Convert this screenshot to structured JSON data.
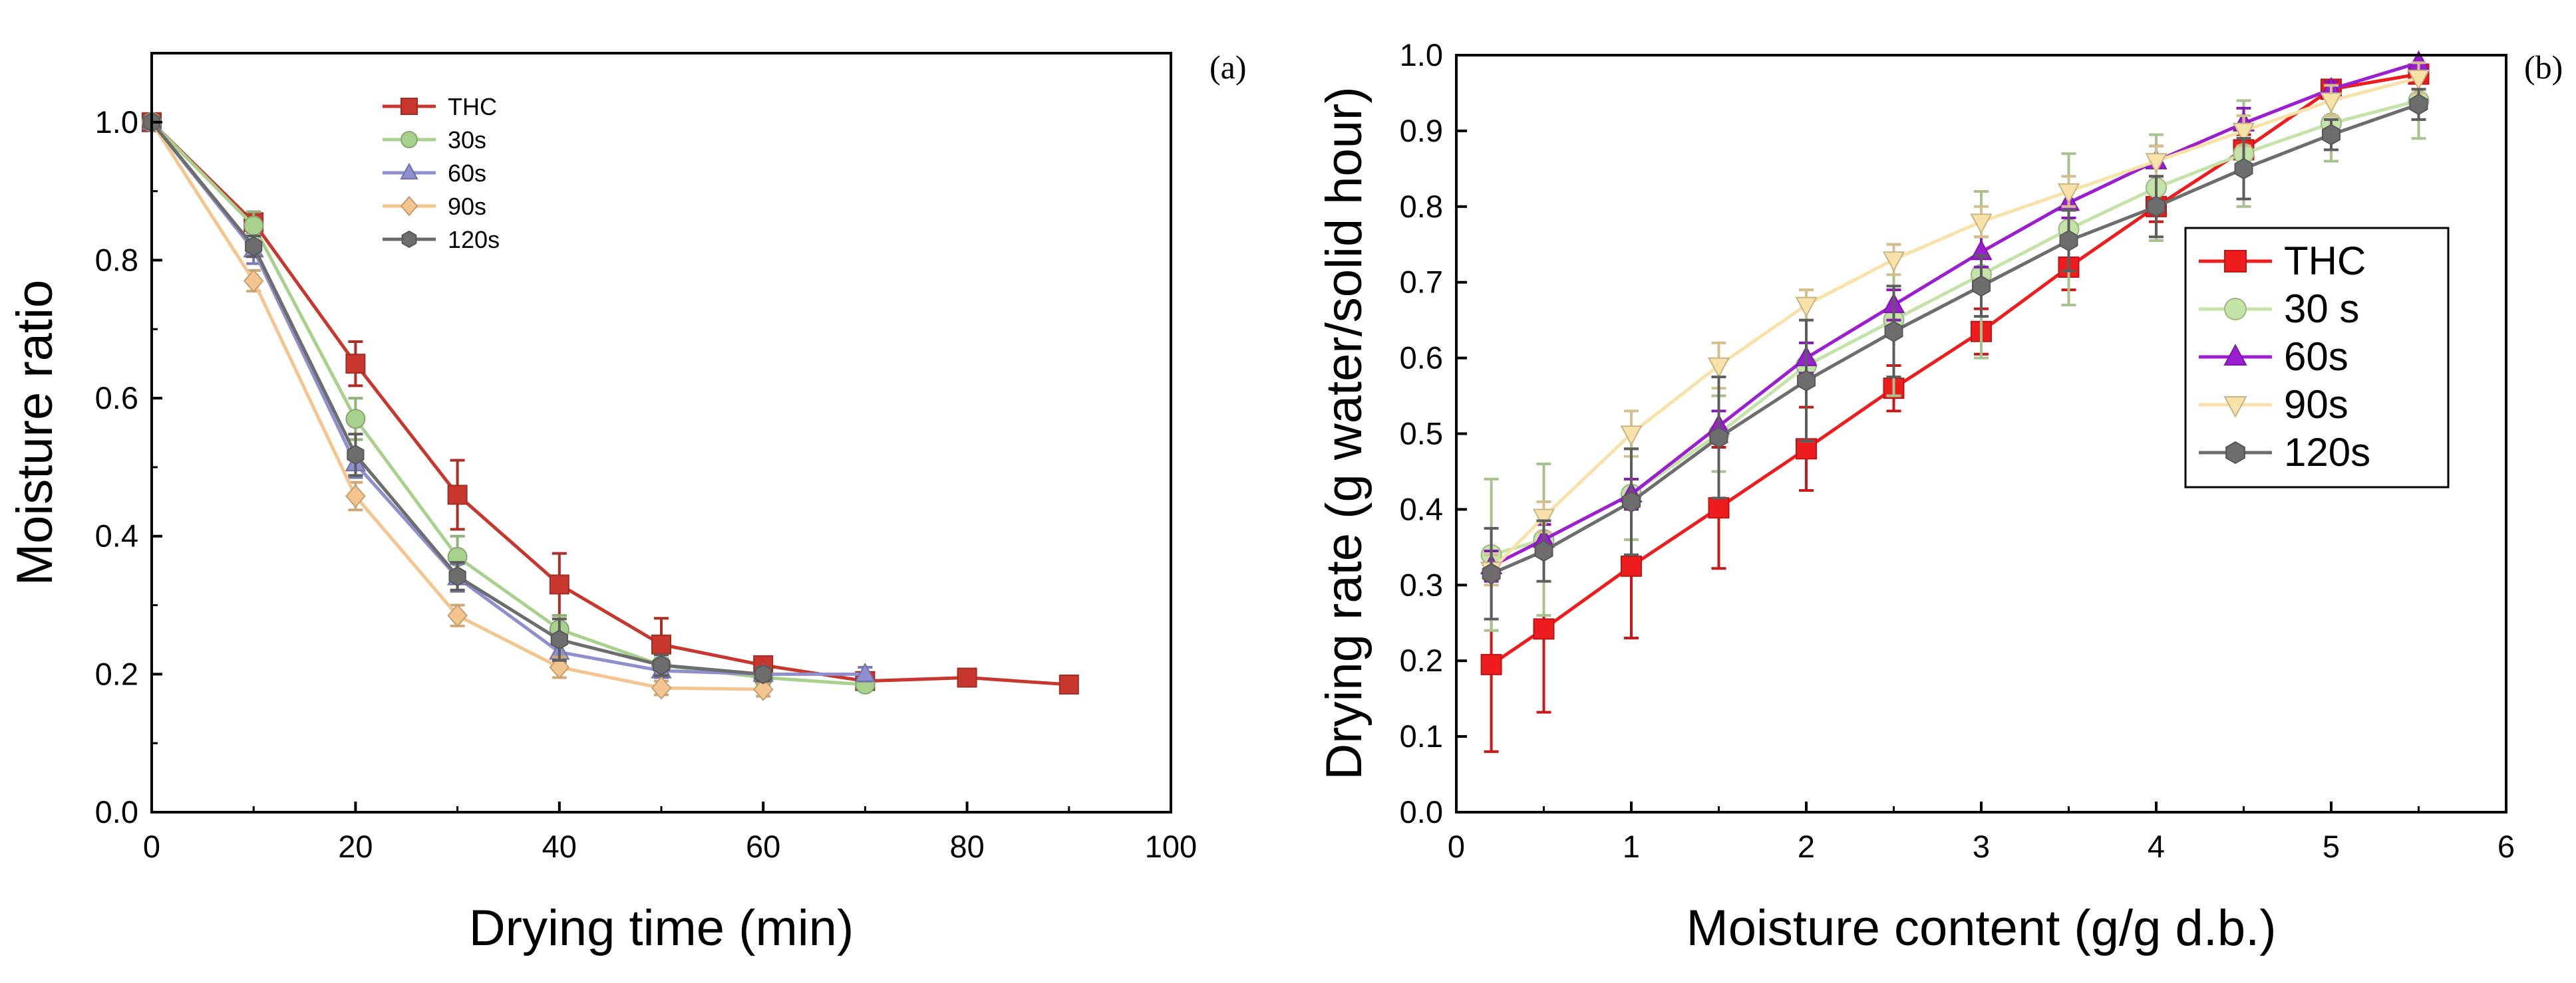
{
  "chart_data": [
    {
      "panel_label": "(a)",
      "type": "line",
      "xlabel": "Drying time (min)",
      "ylabel": "Moisture ratio",
      "xlim": [
        0,
        100
      ],
      "ylim": [
        0,
        1.1
      ],
      "xticks": [
        0,
        20,
        40,
        60,
        80,
        100
      ],
      "xtick_labels": [
        "0",
        "20",
        "40",
        "60",
        "80",
        "100"
      ],
      "yticks": [
        0.0,
        0.2,
        0.4,
        0.6,
        0.8,
        1.0
      ],
      "ytick_labels": [
        "0.0",
        "0.2",
        "0.4",
        "0.6",
        "0.8",
        "1.0"
      ],
      "grid": false,
      "legend_position": "top-left",
      "series": [
        {
          "name": "THC",
          "color": "#c8372d",
          "marker": "square",
          "x": [
            0,
            10,
            20,
            30,
            40,
            50,
            60,
            70,
            80,
            90
          ],
          "y": [
            1.0,
            0.855,
            0.65,
            0.46,
            0.33,
            0.243,
            0.213,
            0.19,
            0.195,
            0.185
          ],
          "err": [
            0,
            0.015,
            0.032,
            0.05,
            0.045,
            0.038,
            0.012,
            0.005,
            0.005,
            0.005
          ]
        },
        {
          "name": "30s",
          "color": "#a9d18e",
          "marker": "circle",
          "x": [
            0,
            10,
            20,
            30,
            40,
            50,
            60,
            70
          ],
          "y": [
            1.0,
            0.85,
            0.57,
            0.37,
            0.265,
            0.213,
            0.195,
            0.185
          ],
          "err": [
            0,
            0.02,
            0.03,
            0.03,
            0.02,
            0.01,
            0.01,
            0.005
          ]
        },
        {
          "name": "60s",
          "color": "#8f8fd0",
          "marker": "triangle",
          "x": [
            0,
            10,
            20,
            30,
            40,
            50,
            60,
            70
          ],
          "y": [
            1.0,
            0.815,
            0.505,
            0.34,
            0.232,
            0.205,
            0.2,
            0.2
          ],
          "err": [
            0,
            0.02,
            0.02,
            0.02,
            0.015,
            0.01,
            0.01,
            0.01
          ]
        },
        {
          "name": "90s",
          "color": "#f4c58e",
          "marker": "diamond",
          "x": [
            0,
            10,
            20,
            30,
            40,
            50,
            60
          ],
          "y": [
            1.0,
            0.77,
            0.458,
            0.285,
            0.21,
            0.18,
            0.178
          ],
          "err": [
            0,
            0.015,
            0.02,
            0.015,
            0.015,
            0.01,
            0.01
          ]
        },
        {
          "name": "120s",
          "color": "#6d6d6d",
          "marker": "hexagon",
          "x": [
            0,
            10,
            20,
            30,
            40,
            50,
            60
          ],
          "y": [
            1.0,
            0.82,
            0.518,
            0.342,
            0.25,
            0.213,
            0.2
          ],
          "err": [
            0,
            0.015,
            0.03,
            0.02,
            0.03,
            0.015,
            0.01
          ]
        }
      ]
    },
    {
      "panel_label": "(b)",
      "type": "line",
      "xlabel": "Moisture content (g/g d.b.)",
      "ylabel": "Drying rate (g water/solid hour)",
      "xlim": [
        0,
        6
      ],
      "ylim": [
        0,
        1.0
      ],
      "xticks": [
        0,
        1,
        2,
        3,
        4,
        5,
        6
      ],
      "xtick_labels": [
        "0",
        "1",
        "2",
        "3",
        "4",
        "5",
        "6"
      ],
      "yticks": [
        0.0,
        0.1,
        0.2,
        0.3,
        0.4,
        0.5,
        0.6,
        0.7,
        0.8,
        0.9,
        1.0
      ],
      "ytick_labels": [
        "0.0",
        "0.1",
        "0.2",
        "0.3",
        "0.4",
        "0.5",
        "0.6",
        "0.7",
        "0.8",
        "0.9",
        "1.0"
      ],
      "grid": false,
      "legend_position": "right",
      "series": [
        {
          "name": "THC",
          "color": "#ee1c1c",
          "marker": "square",
          "x": [
            0.2,
            0.5,
            1.0,
            1.5,
            2.0,
            2.5,
            3.0,
            3.5,
            4.0,
            4.5,
            5.0,
            5.5
          ],
          "y": [
            0.195,
            0.242,
            0.325,
            0.402,
            0.48,
            0.56,
            0.635,
            0.72,
            0.8,
            0.875,
            0.955,
            0.975
          ],
          "err": [
            0.115,
            0.11,
            0.095,
            0.08,
            0.055,
            0.03,
            0.03,
            0.03,
            0.02,
            0.02,
            0.01,
            0.01
          ]
        },
        {
          "name": "30 s",
          "color": "#c5e3a8",
          "marker": "circle",
          "x": [
            0.2,
            0.5,
            1.0,
            1.5,
            2.0,
            2.5,
            3.0,
            3.5,
            4.0,
            4.5,
            5.0,
            5.5
          ],
          "y": [
            0.34,
            0.36,
            0.42,
            0.5,
            0.59,
            0.65,
            0.71,
            0.77,
            0.825,
            0.87,
            0.91,
            0.94
          ],
          "err": [
            0.1,
            0.1,
            0.06,
            0.05,
            0.1,
            0.1,
            0.11,
            0.1,
            0.07,
            0.07,
            0.05,
            0.05
          ]
        },
        {
          "name": "60s",
          "color": "#9b1fd1",
          "marker": "triangle",
          "x": [
            0.2,
            0.5,
            1.0,
            1.5,
            2.0,
            2.5,
            3.0,
            3.5,
            4.0,
            4.5,
            5.0,
            5.5
          ],
          "y": [
            0.325,
            0.36,
            0.42,
            0.51,
            0.6,
            0.67,
            0.74,
            0.805,
            0.86,
            0.91,
            0.955,
            0.99
          ],
          "err": [
            0.02,
            0.02,
            0.02,
            0.02,
            0.02,
            0.02,
            0.02,
            0.02,
            0.02,
            0.02,
            0.01,
            0.01
          ]
        },
        {
          "name": "90s",
          "color": "#f8e2a8",
          "marker": "triangle-down",
          "x": [
            0.2,
            0.5,
            1.0,
            1.5,
            2.0,
            2.5,
            3.0,
            3.5,
            4.0,
            4.5,
            5.0,
            5.5
          ],
          "y": [
            0.32,
            0.39,
            0.5,
            0.59,
            0.67,
            0.73,
            0.78,
            0.82,
            0.86,
            0.9,
            0.94,
            0.97
          ],
          "err": [
            0.02,
            0.02,
            0.03,
            0.03,
            0.02,
            0.02,
            0.02,
            0.02,
            0.02,
            0.02,
            0.02,
            0.02
          ]
        },
        {
          "name": "120s",
          "color": "#6d6d6d",
          "marker": "hexagon",
          "x": [
            0.2,
            0.5,
            1.0,
            1.5,
            2.0,
            2.5,
            3.0,
            3.5,
            4.0,
            4.5,
            5.0,
            5.5
          ],
          "y": [
            0.315,
            0.345,
            0.41,
            0.495,
            0.57,
            0.635,
            0.695,
            0.755,
            0.8,
            0.85,
            0.895,
            0.935
          ],
          "err": [
            0.06,
            0.04,
            0.07,
            0.08,
            0.08,
            0.06,
            0.04,
            0.04,
            0.04,
            0.04,
            0.02,
            0.02
          ]
        }
      ]
    }
  ]
}
